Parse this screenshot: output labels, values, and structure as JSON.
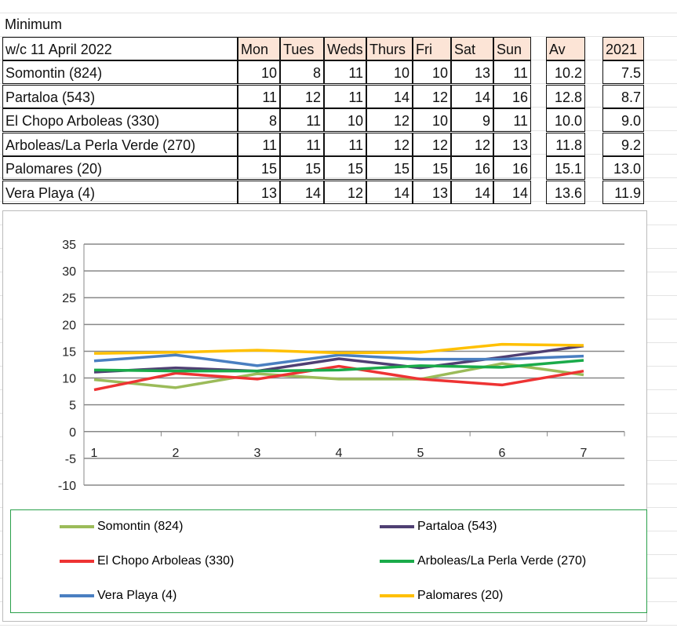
{
  "sheet": {
    "title": "Minimum",
    "week_label": "w/c 11 April 2022",
    "day_headers": [
      "Mon",
      "Tues",
      "Weds",
      "Thurs",
      "Fri",
      "Sat",
      "Sun"
    ],
    "av_header": "Av",
    "prev_header": "2021",
    "rows": [
      {
        "name": "Somontin (824)",
        "values": [
          "10",
          "8",
          "11",
          "10",
          "10",
          "13",
          "11"
        ],
        "av": "10.2",
        "prev": "7.5"
      },
      {
        "name": "Partaloa (543)",
        "values": [
          "11",
          "12",
          "11",
          "14",
          "12",
          "14",
          "16"
        ],
        "av": "12.8",
        "prev": "8.7"
      },
      {
        "name": "El Chopo Arboleas (330)",
        "values": [
          "8",
          "11",
          "10",
          "12",
          "10",
          "9",
          "11"
        ],
        "av": "10.0",
        "prev": "9.0"
      },
      {
        "name": "Arboleas/La Perla Verde (270)",
        "values": [
          "11",
          "11",
          "11",
          "12",
          "12",
          "12",
          "13"
        ],
        "av": "11.8",
        "prev": "9.2"
      },
      {
        "name": "Palomares (20)",
        "values": [
          "15",
          "15",
          "15",
          "15",
          "15",
          "16",
          "16"
        ],
        "av": "15.1",
        "prev": "13.0"
      },
      {
        "name": "Vera Playa (4)",
        "values": [
          "13",
          "14",
          "12",
          "14",
          "13",
          "14",
          "14"
        ],
        "av": "13.6",
        "prev": "11.9"
      }
    ]
  },
  "chart_data": {
    "type": "line",
    "x": [
      1,
      2,
      3,
      4,
      5,
      6,
      7
    ],
    "ylim": [
      -10,
      35
    ],
    "yticks": [
      35,
      30,
      25,
      20,
      15,
      10,
      5,
      0,
      -5,
      -10
    ],
    "grid": true,
    "legend": "bottom",
    "series": [
      {
        "name": "Somontin (824)",
        "color": "#9bbb59",
        "values": [
          9.7,
          8.2,
          10.8,
          9.8,
          9.8,
          12.7,
          10.6
        ]
      },
      {
        "name": "Partaloa (543)",
        "color": "#4f3f73",
        "values": [
          11.1,
          11.9,
          11.3,
          13.6,
          11.9,
          13.9,
          16.0
        ]
      },
      {
        "name": "El Chopo Arboleas (330)",
        "color": "#ee3333",
        "values": [
          7.8,
          10.9,
          9.8,
          12.2,
          9.8,
          8.7,
          11.3
        ]
      },
      {
        "name": "Arboleas/La Perla Verde (270)",
        "color": "#1aab4a",
        "values": [
          11.5,
          11.3,
          11.3,
          11.5,
          12.3,
          12.0,
          13.3
        ]
      },
      {
        "name": "Vera Playa (4)",
        "color": "#4a7fc1",
        "values": [
          13.2,
          14.3,
          12.3,
          14.3,
          13.5,
          13.5,
          14.1
        ]
      },
      {
        "name": "Palomares (20)",
        "color": "#ffc000",
        "values": [
          14.6,
          14.8,
          15.2,
          14.7,
          14.8,
          16.3,
          16.1
        ]
      }
    ]
  }
}
